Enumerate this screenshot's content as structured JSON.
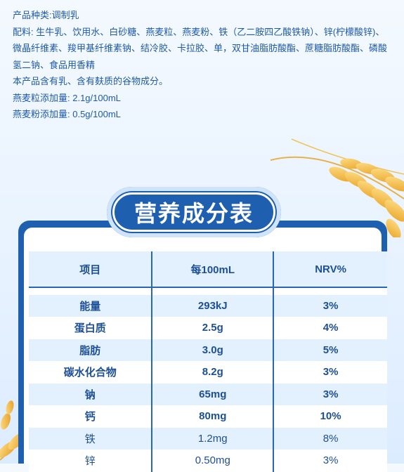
{
  "ingredients": {
    "product_type": "产品种类:调制乳",
    "ingredient_list": "配料: 生牛乳、饮用水、白砂糖、燕麦粒、燕麦粉、铁（乙二胺四乙酸铁钠）、锌(柠檬酸锌)、微晶纤维素、羧甲基纤维素钠、结冷胶、卡拉胶、单，双甘油脂肪酸酯、蔗糖脂肪酸酯、磷酸氢二钠、食品用香精",
    "allergen_note": "本产品含有乳、含有麸质的谷物成分。",
    "oat_grain_amount": "燕麦粒添加量: 2.1g/100mL",
    "oat_flour_amount": "燕麦粉添加量: 0.5g/100mL"
  },
  "table": {
    "title": "营养成分表",
    "headers": [
      "项目",
      "每100mL",
      "NRV%"
    ],
    "rows": [
      {
        "item": "能量",
        "per_100ml": "293kJ",
        "nrv": "3%"
      },
      {
        "item": "蛋白质",
        "per_100ml": "2.5g",
        "nrv": "4%"
      },
      {
        "item": "脂肪",
        "per_100ml": "3.0g",
        "nrv": "5%"
      },
      {
        "item": "碳水化合物",
        "per_100ml": "8.2g",
        "nrv": "3%"
      },
      {
        "item": "钠",
        "per_100ml": "65mg",
        "nrv": "3%"
      },
      {
        "item": "钙",
        "per_100ml": "80mg",
        "nrv": "10%"
      },
      {
        "item": "铁",
        "per_100ml": "1.2mg",
        "nrv": "8%"
      },
      {
        "item": "锌",
        "per_100ml": "0.50mg",
        "nrv": "3%"
      }
    ]
  },
  "colors": {
    "text_blue": "#1f5aa6",
    "table_blue": "#1f5fb0",
    "row_tint": "#e3f0fd",
    "wheat_gold": "#f2b63c"
  },
  "decorations": [
    "wheat-ear-illustration-top-right",
    "wheat-ear-illustration-bottom-left"
  ]
}
